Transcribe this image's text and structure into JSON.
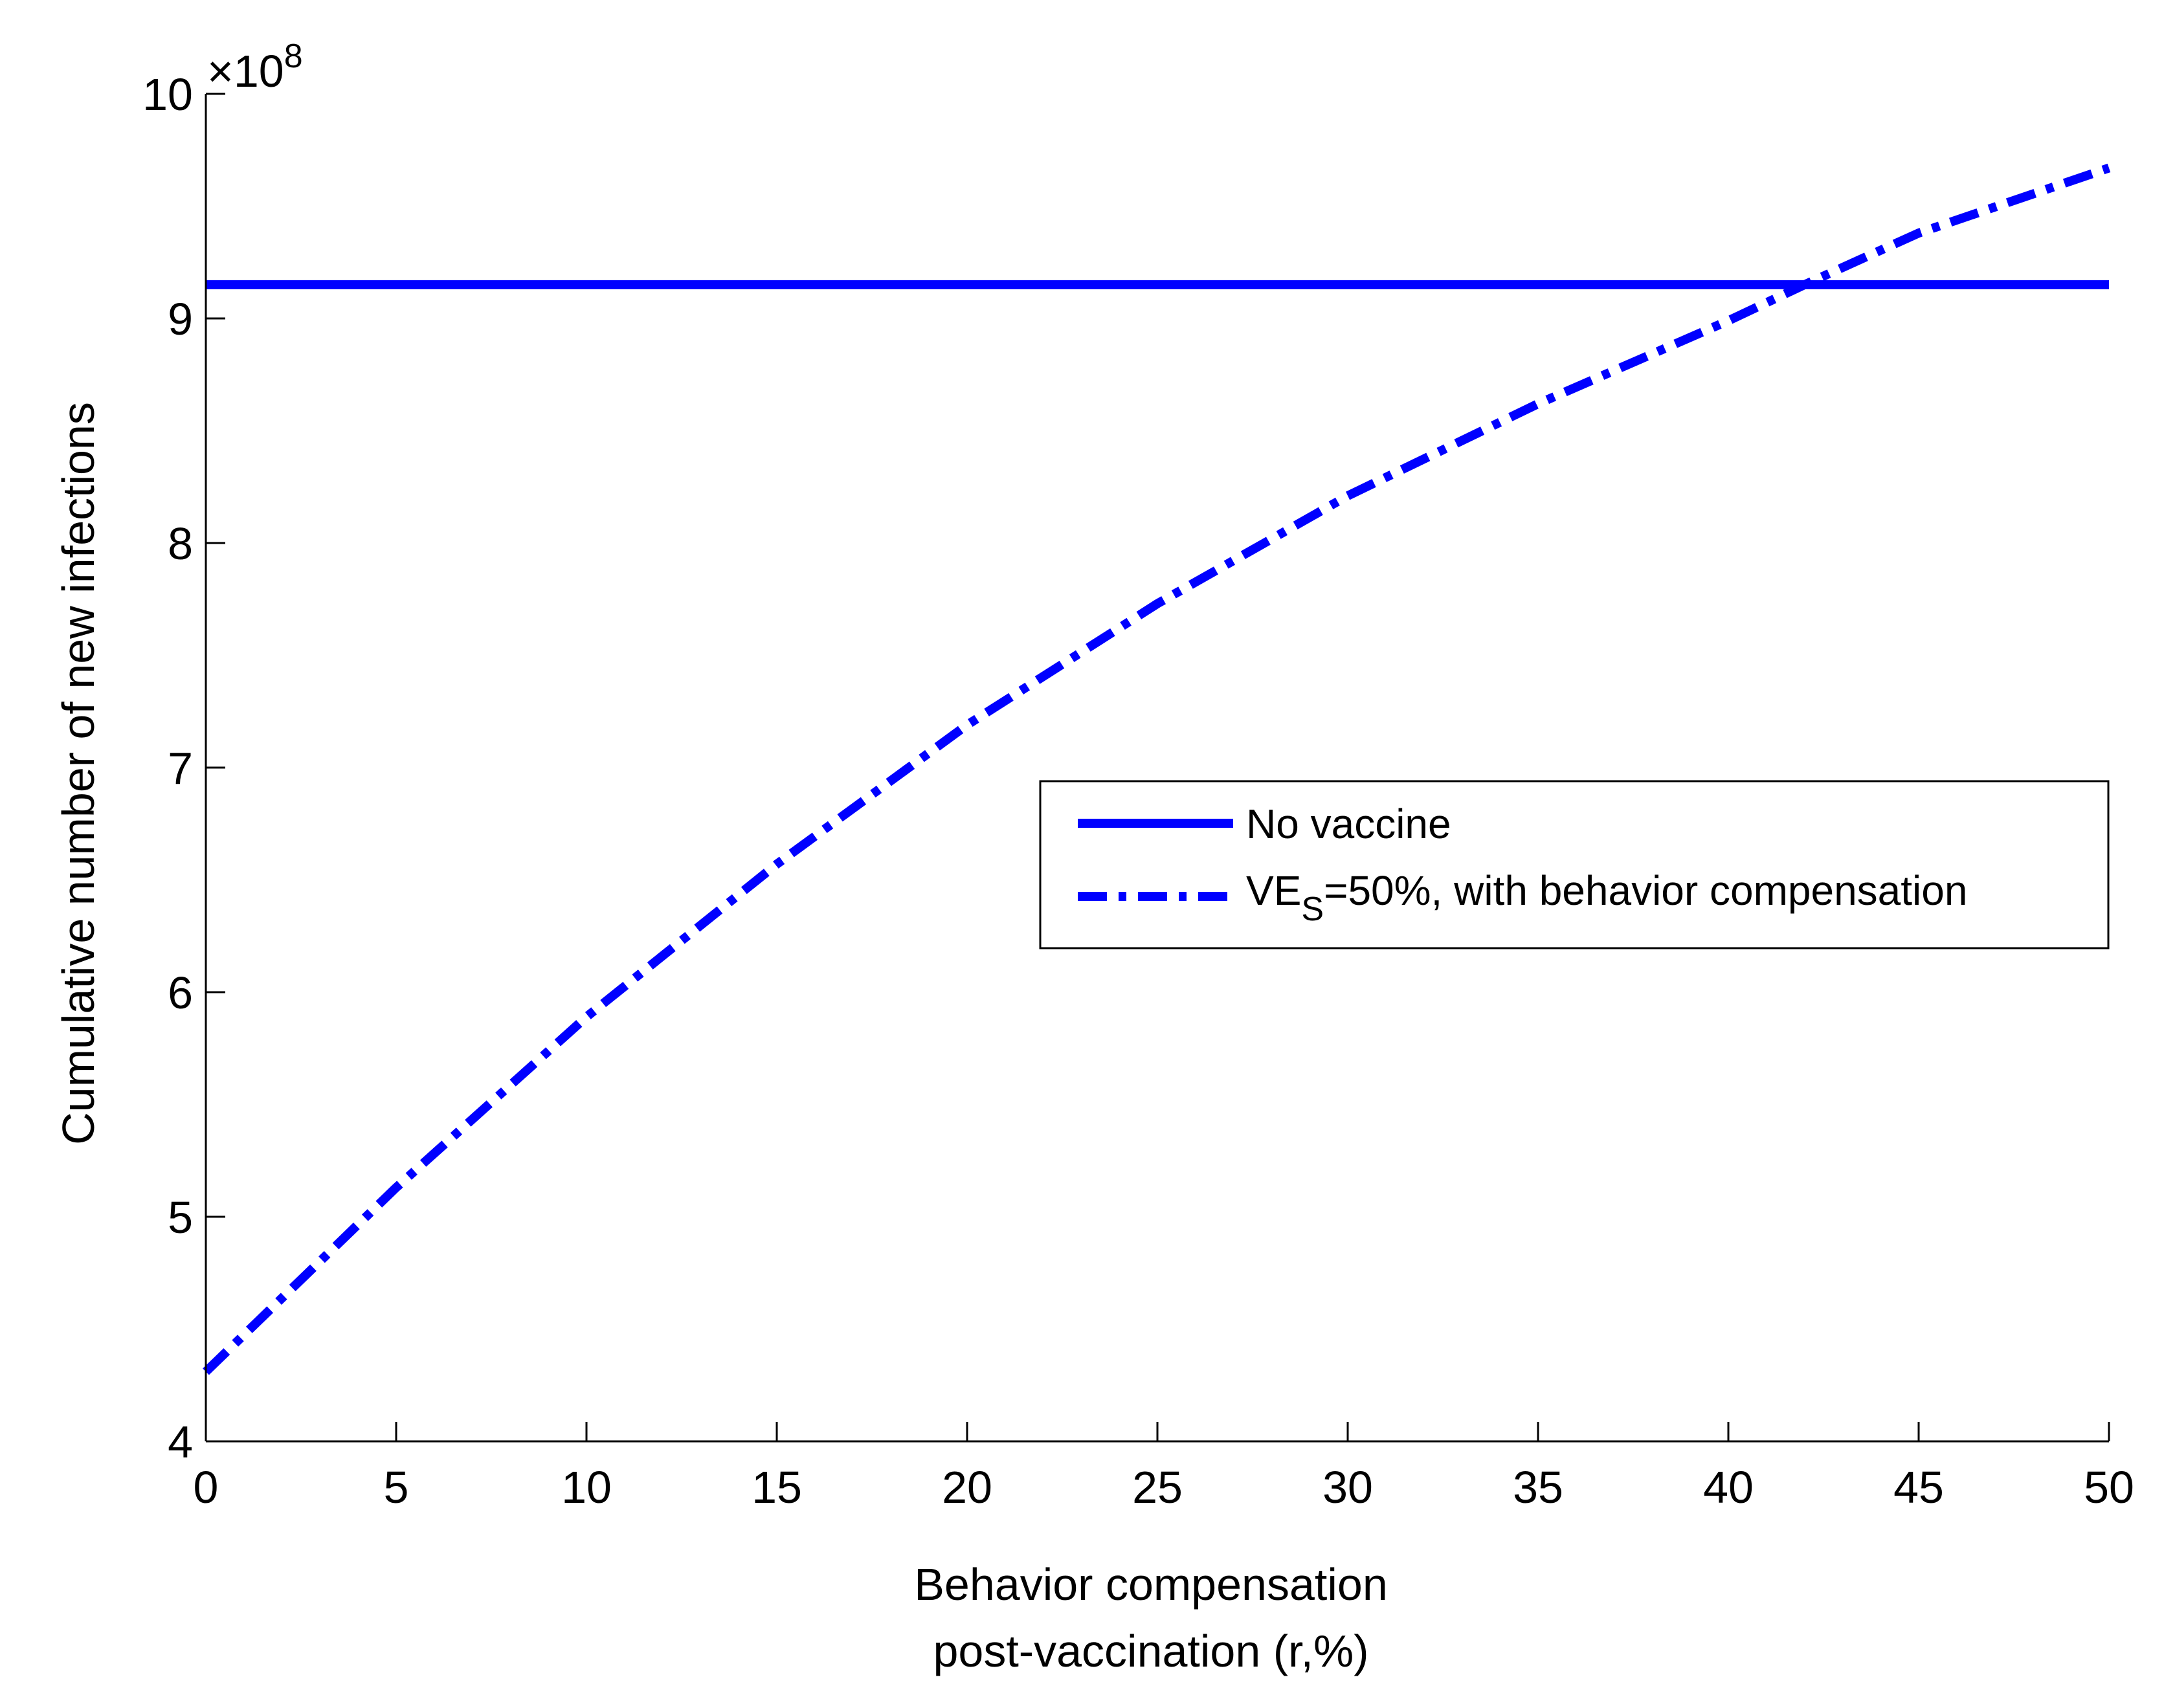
{
  "chart_data": {
    "type": "line",
    "xlabel_lines": [
      "Behavior compensation",
      "post-vaccination (r,%)"
    ],
    "ylabel": "Cumulative number of new infections",
    "y_multiplier": {
      "base": "×10",
      "exponent": "8"
    },
    "xlim": [
      0,
      50
    ],
    "ylim": [
      4,
      10
    ],
    "x_ticks": [
      0,
      5,
      10,
      15,
      20,
      25,
      30,
      35,
      40,
      45,
      50
    ],
    "x_tick_labels": [
      "0",
      "5",
      "10",
      "15",
      "20",
      "25",
      "30",
      "35",
      "40",
      "45",
      "50"
    ],
    "y_ticks": [
      4,
      5,
      6,
      7,
      8,
      9,
      10
    ],
    "y_tick_labels": [
      "4",
      "5",
      "6",
      "7",
      "8",
      "9",
      "10"
    ],
    "grid": false,
    "legend_position": "center-right",
    "series": [
      {
        "name": "No vaccine",
        "style": "solid",
        "color": "#0000ff",
        "x": [
          0,
          50
        ],
        "y": [
          9.15,
          9.15
        ]
      },
      {
        "name_parts": [
          "VE",
          "S",
          "=50%, with behavior compensation"
        ],
        "style": "dashdot",
        "color": "#0000ff",
        "x": [
          0,
          5,
          10,
          15,
          20,
          25,
          30,
          35,
          40,
          42,
          45,
          50
        ],
        "y": [
          4.31,
          5.13,
          5.89,
          6.57,
          7.19,
          7.73,
          8.21,
          8.62,
          8.99,
          9.15,
          9.38,
          9.67
        ]
      }
    ]
  }
}
